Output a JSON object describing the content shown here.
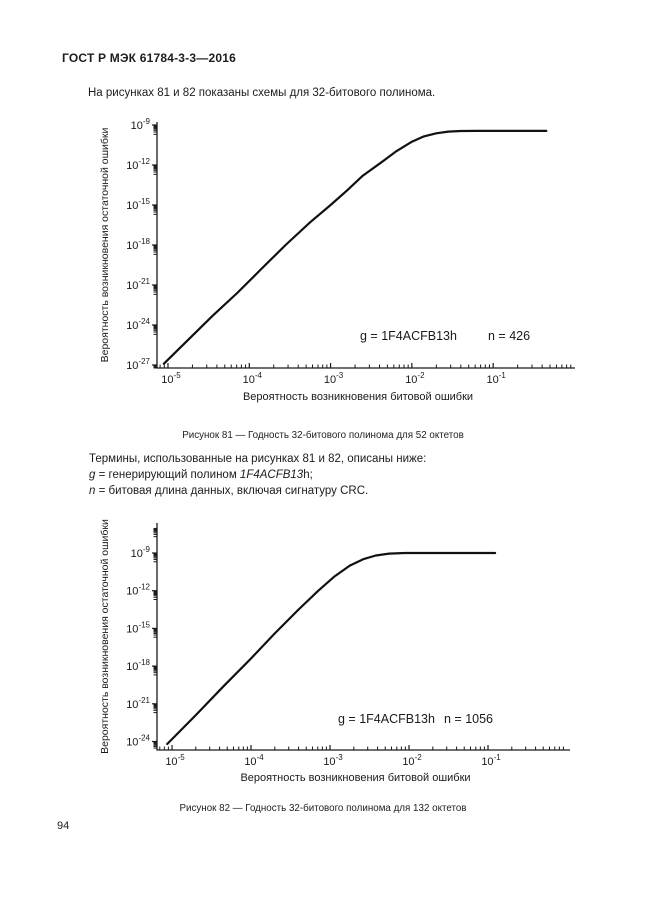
{
  "page": {
    "header": "ГОСТ Р МЭК 61784-3-3—2016",
    "intro": "На рисунках 81 и 82 показаны схемы для 32-битового полинома.",
    "page_number": "94"
  },
  "terms": {
    "intro_line": "Термины, использованные на рисунках 81 и 82, описаны ниже:",
    "g_symbol": "g",
    "g_text": " = генерирующий полином ",
    "g_poly_italic": "1F4ACFB13",
    "g_suffix": "h;",
    "n_symbol": "n",
    "n_text": " = битовая длина данных, включая сигнатуру CRC."
  },
  "chart_data": [
    {
      "type": "line",
      "figure": "81",
      "caption": "Рисунок 81 — Годность 32-битового полинома для 52 октетов",
      "xlabel": "Вероятность возникновения битовой ошибки",
      "ylabel": "Вероятность возникновения остаточной ошибки",
      "annotations": [
        {
          "text": "g = 1F4ACFB13h"
        },
        {
          "text": "n = 426"
        }
      ],
      "x_tick_exponents": [
        -5,
        -4,
        -3,
        -2,
        -1
      ],
      "y_tick_exponents": [
        -9,
        -12,
        -15,
        -18,
        -21,
        -24,
        -27
      ],
      "x_minor_decades": [
        -6,
        -5,
        -4,
        -3,
        -2,
        -1
      ],
      "extra_y_minor_decades": [],
      "xlim_log": [
        -5.135,
        0.01
      ],
      "ylim_log": [
        -27.23,
        -9.2
      ],
      "grid": false,
      "legend": "none",
      "line_color": "#111111",
      "series": [
        {
          "name": "residual-error-probability",
          "points": [
            [
              8.9e-06,
              1.26e-27
            ],
            [
              1.78e-05,
              7.9e-26
            ],
            [
              3.55e-05,
              5e-24
            ],
            [
              7.1e-05,
              2.5e-22
            ],
            [
              0.000141,
              1.6e-20
            ],
            [
              0.00028,
              1e-18
            ],
            [
              0.00056,
              5e-17
            ],
            [
              0.001,
              1e-15
            ],
            [
              0.0016,
              1.26e-14
            ],
            [
              0.0025,
              1.6e-13
            ],
            [
              0.004,
              1.26e-12
            ],
            [
              0.0063,
              1e-11
            ],
            [
              0.01,
              5.6e-11
            ],
            [
              0.014,
              1.4e-10
            ],
            [
              0.02,
              2.4e-10
            ],
            [
              0.028,
              3.2e-10
            ],
            [
              0.04,
              3.55e-10
            ],
            [
              0.063,
              3.6e-10
            ],
            [
              0.45,
              3.6e-10
            ]
          ]
        }
      ]
    },
    {
      "type": "line",
      "figure": "82",
      "caption": "Рисунок 82 — Годность 32-битового полинома для 132 октетов",
      "xlabel": "Вероятность возникновения битовой ошибки",
      "ylabel": "Вероятность возникновения остаточной ошибки",
      "annotations": [
        {
          "text": "g = 1F4ACFB13h"
        },
        {
          "text": "n = 1056"
        }
      ],
      "x_tick_exponents": [
        -5,
        -4,
        -3,
        -2,
        -1
      ],
      "y_tick_exponents": [
        -9,
        -12,
        -15,
        -18,
        -21,
        -24
      ],
      "x_minor_decades": [
        -6,
        -5,
        -4,
        -3,
        -2,
        -1
      ],
      "extra_y_minor_decades": [
        -8
      ],
      "xlim_log": [
        -5.19,
        0.04
      ],
      "ylim_log": [
        -24.67,
        -6.6
      ],
      "grid": false,
      "legend": "none",
      "line_color": "#111111",
      "series": [
        {
          "name": "residual-error-probability",
          "points": [
            [
              8.7e-06,
              6.3e-25
            ],
            [
              2e-05,
              1.26e-22
            ],
            [
              4.5e-05,
              2.5e-20
            ],
            [
              0.0001,
              4e-18
            ],
            [
              0.0002,
              4e-16
            ],
            [
              0.0004,
              3.2e-14
            ],
            [
              0.00071,
              1e-12
            ],
            [
              0.00112,
              1.26e-11
            ],
            [
              0.00178,
              1e-10
            ],
            [
              0.00263,
              3.2e-10
            ],
            [
              0.0038,
              6.3e-10
            ],
            [
              0.0056,
              8.9e-10
            ],
            [
              0.0089,
              1e-09
            ],
            [
              0.123,
              1e-09
            ]
          ]
        }
      ]
    }
  ]
}
